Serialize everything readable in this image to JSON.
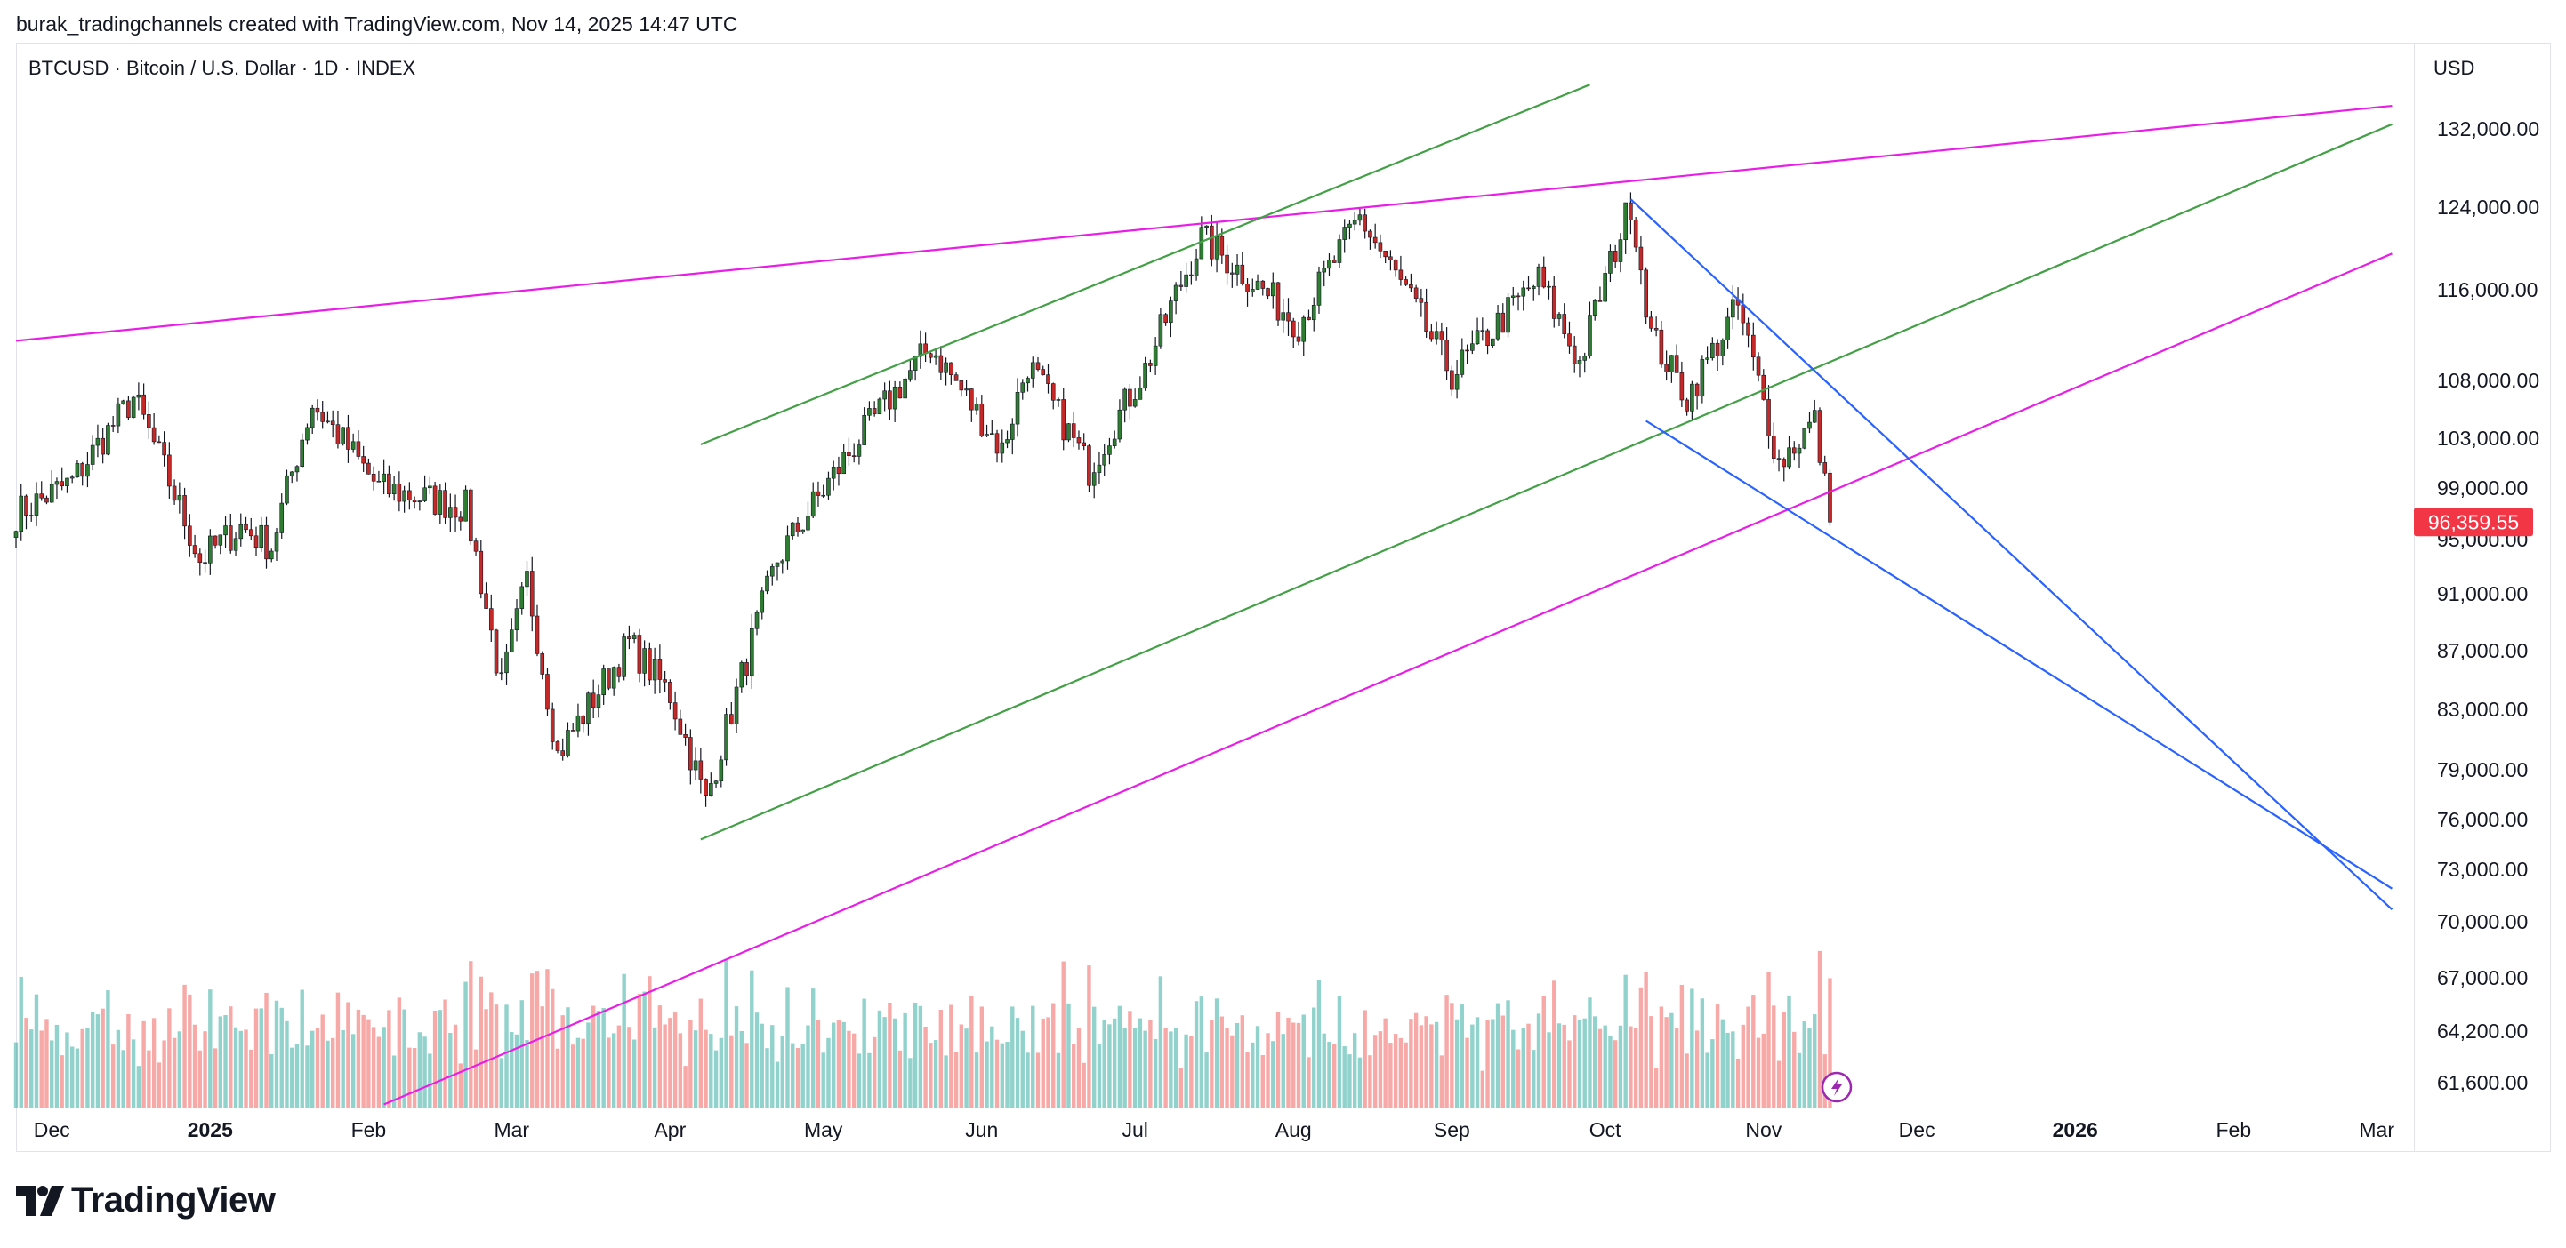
{
  "header": {
    "attribution": "burak_tradingchannels created with TradingView.com, Nov 14, 2025 14:47 UTC"
  },
  "symbol_line": "BTCUSD · Bitcoin / U.S. Dollar · 1D · INDEX",
  "currency": "USD",
  "brand": {
    "name": "TradingView"
  },
  "colors": {
    "up": "#26a69a",
    "down": "#ef5350",
    "candle_up": "#2e7d32",
    "candle_down": "#c62828",
    "magenta": "#e91ee6",
    "green": "#43a047",
    "blue": "#2962ff",
    "last_price_bg": "#f23645"
  },
  "icons": {
    "lightning": "lightning-bolt-icon"
  },
  "chart_data": {
    "type": "candlestick",
    "interval": "1D",
    "last_price": "96,359.55",
    "y_ticks": [
      "132,000.00",
      "124,000.00",
      "116,000.00",
      "108,000.00",
      "103,000.00",
      "99,000.00",
      "95,000.00",
      "91,000.00",
      "87,000.00",
      "83,000.00",
      "79,000.00",
      "76,000.00",
      "73,000.00",
      "70,000.00",
      "67,000.00",
      "64,200.00",
      "61,600.00"
    ],
    "x_ticks": [
      {
        "label": "Dec",
        "bold": false
      },
      {
        "label": "2025",
        "bold": true
      },
      {
        "label": "Feb",
        "bold": false
      },
      {
        "label": "Mar",
        "bold": false
      },
      {
        "label": "Apr",
        "bold": false
      },
      {
        "label": "May",
        "bold": false
      },
      {
        "label": "Jun",
        "bold": false
      },
      {
        "label": "Jul",
        "bold": false
      },
      {
        "label": "Aug",
        "bold": false
      },
      {
        "label": "Sep",
        "bold": false
      },
      {
        "label": "Oct",
        "bold": false
      },
      {
        "label": "Nov",
        "bold": false
      },
      {
        "label": "Dec",
        "bold": false
      },
      {
        "label": "2026",
        "bold": true
      },
      {
        "label": "Feb",
        "bold": false
      },
      {
        "label": "Mar",
        "bold": false
      }
    ],
    "price_anchors": [
      {
        "date": "2024-11-24",
        "close": 97000
      },
      {
        "date": "2024-12-05",
        "close": 99500
      },
      {
        "date": "2024-12-17",
        "close": 106500
      },
      {
        "date": "2024-12-30",
        "close": 93500
      },
      {
        "date": "2025-01-07",
        "close": 96000
      },
      {
        "date": "2025-01-13",
        "close": 94500
      },
      {
        "date": "2025-01-21",
        "close": 106000
      },
      {
        "date": "2025-02-03",
        "close": 99000
      },
      {
        "date": "2025-02-20",
        "close": 97500
      },
      {
        "date": "2025-02-27",
        "close": 84500
      },
      {
        "date": "2025-03-04",
        "close": 92000
      },
      {
        "date": "2025-03-10",
        "close": 80000
      },
      {
        "date": "2025-03-24",
        "close": 87500
      },
      {
        "date": "2025-04-01",
        "close": 84000
      },
      {
        "date": "2025-04-08",
        "close": 77000
      },
      {
        "date": "2025-04-22",
        "close": 93500
      },
      {
        "date": "2025-05-08",
        "close": 103000
      },
      {
        "date": "2025-05-22",
        "close": 111000
      },
      {
        "date": "2025-06-05",
        "close": 102000
      },
      {
        "date": "2025-06-10",
        "close": 109500
      },
      {
        "date": "2025-06-22",
        "close": 100500
      },
      {
        "date": "2025-07-03",
        "close": 109000
      },
      {
        "date": "2025-07-14",
        "close": 121000
      },
      {
        "date": "2025-08-02",
        "close": 113000
      },
      {
        "date": "2025-08-14",
        "close": 123000
      },
      {
        "date": "2025-09-01",
        "close": 108500
      },
      {
        "date": "2025-09-18",
        "close": 117000
      },
      {
        "date": "2025-09-26",
        "close": 109500
      },
      {
        "date": "2025-10-06",
        "close": 124500
      },
      {
        "date": "2025-10-10",
        "close": 112000
      },
      {
        "date": "2025-10-17",
        "close": 106500
      },
      {
        "date": "2025-10-27",
        "close": 114500
      },
      {
        "date": "2025-11-04",
        "close": 101000
      },
      {
        "date": "2025-11-11",
        "close": 104500
      },
      {
        "date": "2025-11-14",
        "close": 96359
      }
    ],
    "trendlines": [
      {
        "name": "magenta-upper",
        "color": "magenta",
        "from": {
          "date": "2024-11-24",
          "price": 111500
        },
        "to": {
          "date": "2026-03-04",
          "price": 134500
        }
      },
      {
        "name": "magenta-lower",
        "color": "magenta",
        "from": {
          "date": "2025-02-04",
          "price": 60500
        },
        "to": {
          "date": "2026-03-04",
          "price": 119500
        }
      },
      {
        "name": "green-upper",
        "color": "green",
        "from": {
          "date": "2025-04-07",
          "price": 102500
        },
        "to": {
          "date": "2025-09-28",
          "price": 136800
        }
      },
      {
        "name": "green-lower",
        "color": "green",
        "from": {
          "date": "2025-04-07",
          "price": 74800
        },
        "to": {
          "date": "2026-03-04",
          "price": 132500
        }
      },
      {
        "name": "blue-upper",
        "color": "blue",
        "from": {
          "date": "2025-10-06",
          "price": 124800
        },
        "to": {
          "date": "2026-03-04",
          "price": 70700
        }
      },
      {
        "name": "blue-lower",
        "color": "blue",
        "from": {
          "date": "2025-10-09",
          "price": 104500
        },
        "to": {
          "date": "2026-03-04",
          "price": 71900
        }
      }
    ]
  }
}
